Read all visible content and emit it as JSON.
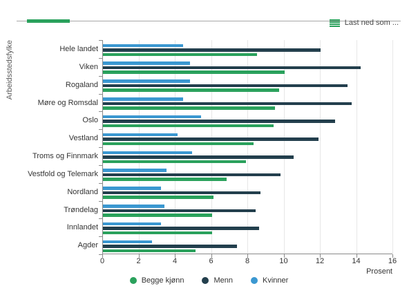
{
  "header": {
    "download_label": "Last ned som ...",
    "accent_color": "#2aa15c"
  },
  "chart_data": {
    "type": "bar",
    "orientation": "horizontal",
    "title": "",
    "xlabel": "Prosent",
    "ylabel": "Arbeidsstedsfylke",
    "xlim": [
      0,
      16
    ],
    "xtick_step": 2,
    "grid": true,
    "legend_position": "bottom",
    "categories": [
      "Hele landet",
      "Viken",
      "Rogaland",
      "Møre og Romsdal",
      "Oslo",
      "Vestland",
      "Troms og Finnmark",
      "Vestfold og Telemark",
      "Nordland",
      "Trøndelag",
      "Innlandet",
      "Agder"
    ],
    "bar_order_top_to_bottom": [
      "Kvinner",
      "Menn",
      "Begge kjønn"
    ],
    "series": [
      {
        "name": "Begge kjønn",
        "color": "#2aa15c",
        "values": [
          8.5,
          10.0,
          9.7,
          9.5,
          9.4,
          8.3,
          7.9,
          6.8,
          6.1,
          6.0,
          6.0,
          5.1
        ]
      },
      {
        "name": "Menn",
        "color": "#233f4d",
        "values": [
          12.0,
          14.2,
          13.5,
          13.7,
          12.8,
          11.9,
          10.5,
          9.8,
          8.7,
          8.4,
          8.6,
          7.4
        ]
      },
      {
        "name": "Kvinner",
        "color": "#3b98d1",
        "values": [
          4.4,
          4.8,
          4.8,
          4.4,
          5.4,
          4.1,
          4.9,
          3.5,
          3.2,
          3.4,
          3.2,
          2.7
        ]
      }
    ]
  }
}
